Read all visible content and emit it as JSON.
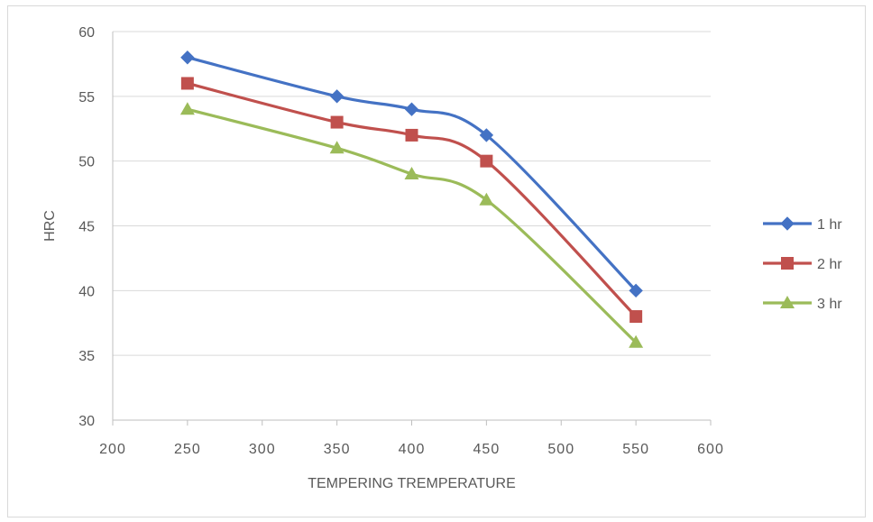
{
  "chart_data": {
    "type": "line",
    "title": "",
    "xlabel": "TEMPERING TREMPERATURE",
    "ylabel": "HRC",
    "xlim": [
      200,
      600
    ],
    "ylim": [
      30,
      60
    ],
    "xticks": [
      200,
      250,
      300,
      350,
      400,
      450,
      500,
      550,
      600
    ],
    "yticks": [
      30,
      35,
      40,
      45,
      50,
      55,
      60
    ],
    "grid": "horizontal",
    "legend_position": "right",
    "x": [
      250,
      350,
      400,
      450,
      550
    ],
    "series": [
      {
        "name": "1 hr",
        "values": [
          58,
          55,
          54,
          52,
          40
        ],
        "color": "#4472c4",
        "marker": "diamond"
      },
      {
        "name": "2 hr",
        "values": [
          56,
          53,
          52,
          50,
          38
        ],
        "color": "#c0504d",
        "marker": "square"
      },
      {
        "name": "3 hr",
        "values": [
          54,
          51,
          49,
          47,
          36
        ],
        "color": "#9bbb59",
        "marker": "triangle"
      }
    ]
  }
}
